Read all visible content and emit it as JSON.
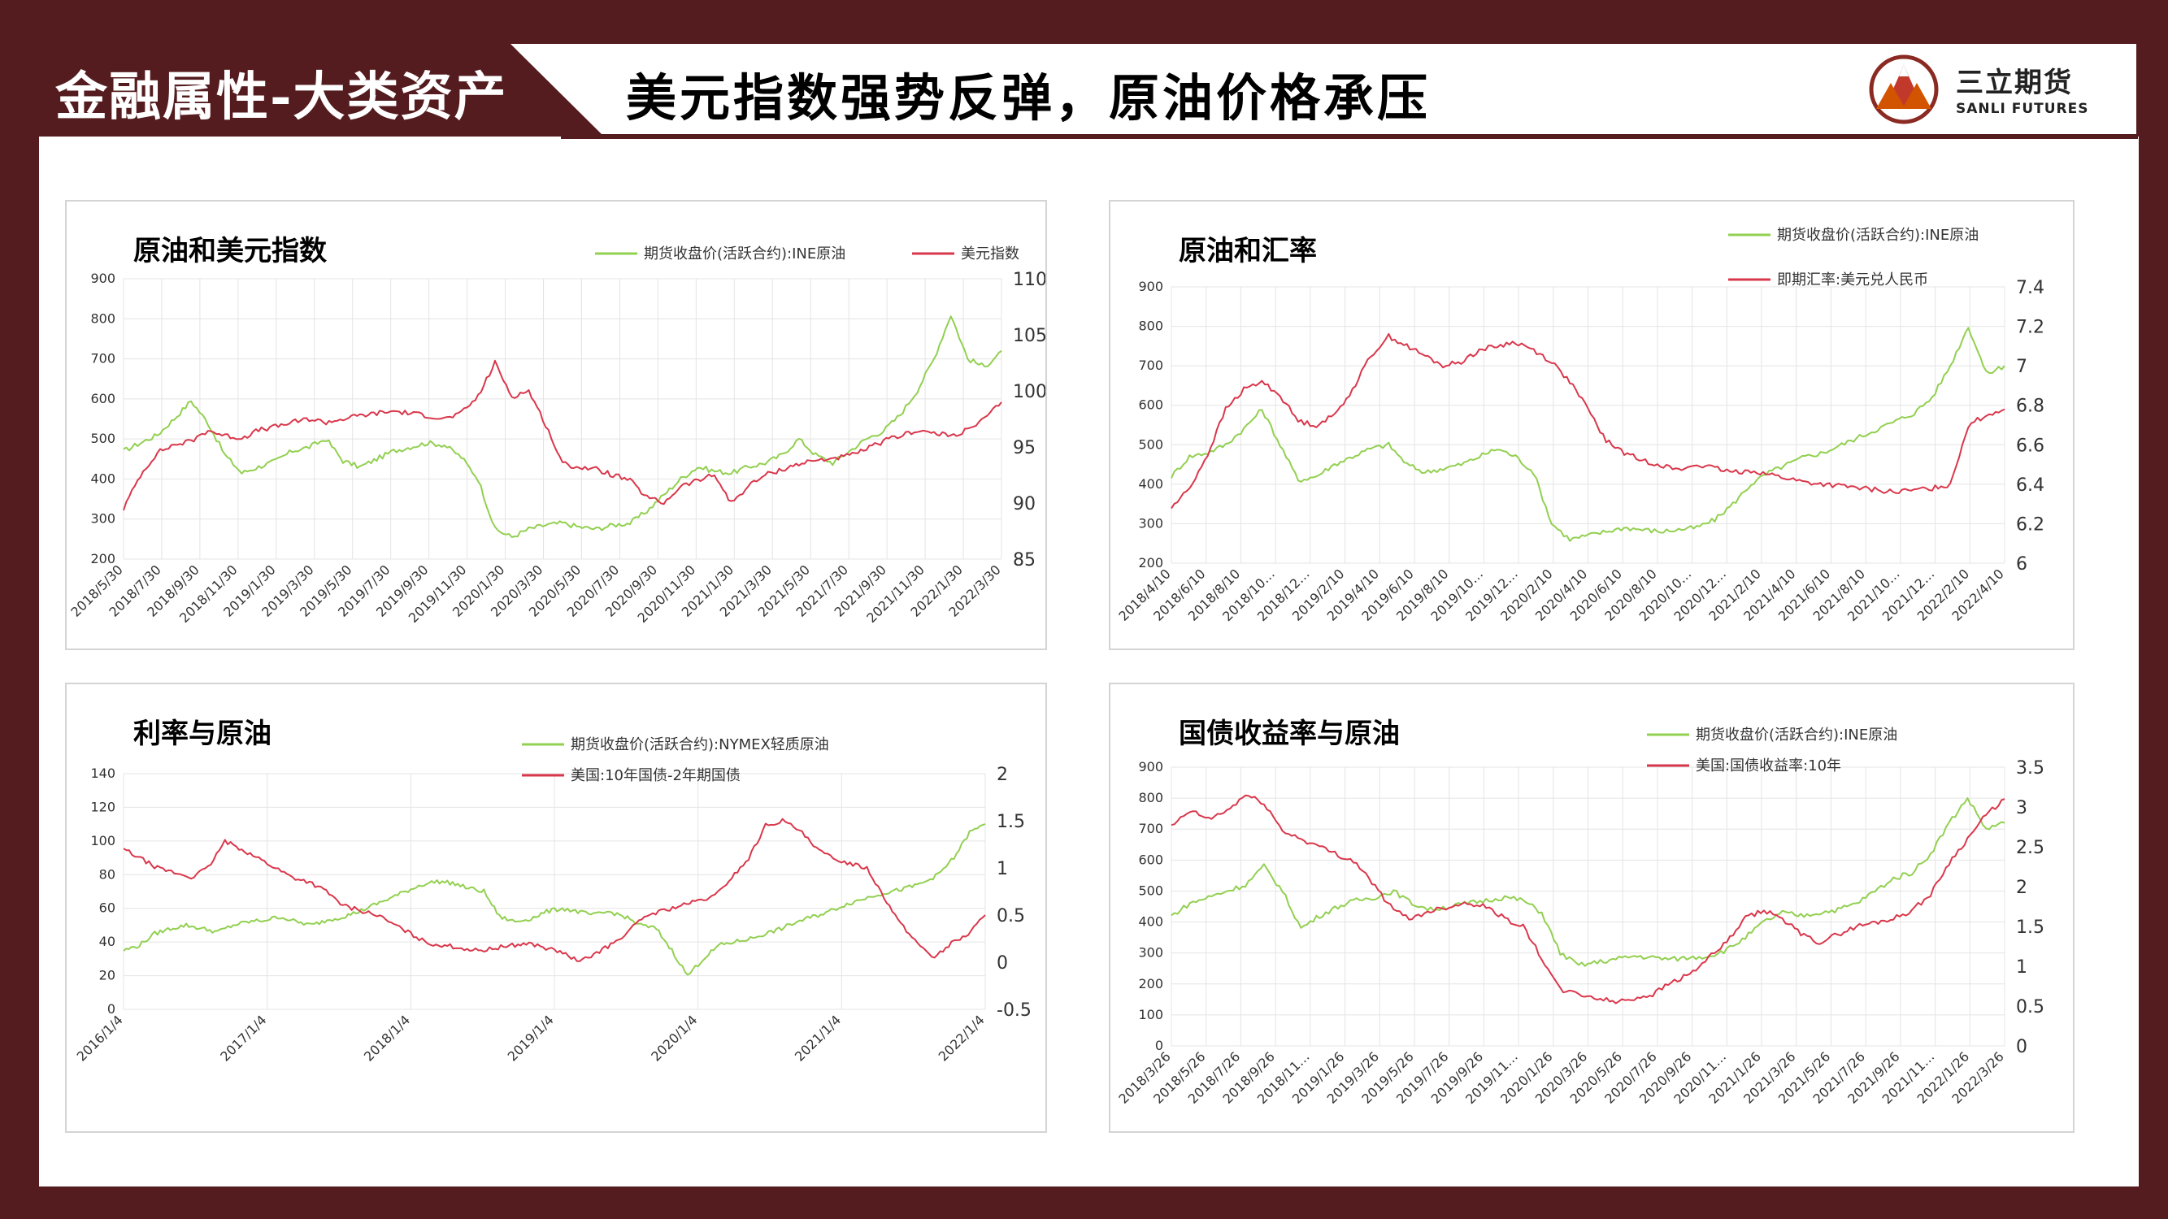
{
  "header": {
    "section_label": "金融属性-大类资产",
    "title": "美元指数强势反弹，原油价格承压",
    "logo_cn": "三立期货",
    "logo_en": "SANLI FUTURES"
  },
  "colors": {
    "green": "#92d050",
    "red": "#d9374b",
    "brand": "#541c1f",
    "grid": "#e4e4e4"
  },
  "chart_data": [
    {
      "type": "line",
      "title": "原油和美元指数",
      "x_tick_labels": [
        "2018/5/30",
        "2018/7/30",
        "2018/9/30",
        "2018/11/30",
        "2019/1/30",
        "2019/3/30",
        "2019/5/30",
        "2019/7/30",
        "2019/9/30",
        "2019/11/30",
        "2020/1/30",
        "2020/3/30",
        "2020/5/30",
        "2020/7/30",
        "2020/9/30",
        "2020/11/30",
        "2021/1/30",
        "2021/3/30",
        "2021/5/30",
        "2021/7/30",
        "2021/9/30",
        "2021/11/30",
        "2022/1/30",
        "2022/3/30"
      ],
      "y_left": {
        "ticks": [
          200,
          300,
          400,
          500,
          600,
          700,
          800,
          900
        ],
        "lim": [
          200,
          900
        ]
      },
      "y_right": {
        "ticks": [
          85,
          90,
          95,
          100,
          105,
          110
        ],
        "lim": [
          85,
          110
        ]
      },
      "series": [
        {
          "name": "期货收盘价(活跃合约):INE原油",
          "axis": "left",
          "color": "green",
          "values": [
            470,
            490,
            510,
            550,
            595,
            540,
            460,
            415,
            430,
            445,
            470,
            480,
            500,
            445,
            430,
            450,
            470,
            480,
            490,
            485,
            455,
            400,
            275,
            255,
            275,
            285,
            290,
            280,
            275,
            285,
            290,
            320,
            360,
            400,
            430,
            420,
            415,
            430,
            440,
            460,
            500,
            460,
            440,
            470,
            500,
            520,
            560,
            620,
            700,
            810,
            700,
            680,
            720
          ]
        },
        {
          "name": "美元指数",
          "axis": "right",
          "color": "red",
          "values": [
            89.5,
            92.5,
            94.5,
            95.2,
            95.5,
            96.5,
            96.0,
            95.8,
            96.5,
            96.8,
            97.2,
            97.5,
            97.2,
            97.5,
            97.8,
            98.0,
            98.2,
            98.0,
            97.8,
            97.5,
            98.0,
            99.5,
            102.5,
            99.5,
            100.0,
            97.0,
            93.5,
            93.2,
            93.0,
            92.5,
            92.0,
            90.5,
            90.0,
            91.5,
            92.0,
            92.5,
            90.0,
            91.5,
            92.5,
            93.0,
            93.5,
            93.8,
            94.0,
            94.2,
            94.8,
            95.5,
            96.0,
            96.5,
            96.2,
            96.0,
            96.5,
            97.5,
            99.0
          ]
        }
      ]
    },
    {
      "type": "line",
      "title": "原油和汇率",
      "x_tick_labels": [
        "2018/4/10",
        "2018/6/10",
        "2018/8/10",
        "2018/10…",
        "2018/12…",
        "2019/2/10",
        "2019/4/10",
        "2019/6/10",
        "2019/8/10",
        "2019/10…",
        "2019/12…",
        "2020/2/10",
        "2020/4/10",
        "2020/6/10",
        "2020/8/10",
        "2020/10…",
        "2020/12…",
        "2021/2/10",
        "2021/4/10",
        "2021/6/10",
        "2021/8/10",
        "2021/10…",
        "2021/12…",
        "2022/2/10",
        "2022/4/10"
      ],
      "y_left": {
        "ticks": [
          200,
          300,
          400,
          500,
          600,
          700,
          800,
          900
        ],
        "lim": [
          200,
          900
        ]
      },
      "y_right": {
        "ticks": [
          6,
          6.2,
          6.4,
          6.6,
          6.8,
          7,
          7.2,
          7.4
        ],
        "lim": [
          6,
          7.4
        ]
      },
      "series": [
        {
          "name": "期货收盘价(活跃合约):INE原油",
          "axis": "left",
          "color": "green",
          "values": [
            420,
            470,
            480,
            500,
            540,
            590,
            500,
            410,
            420,
            450,
            470,
            490,
            500,
            450,
            430,
            440,
            450,
            470,
            490,
            470,
            430,
            300,
            260,
            270,
            280,
            290,
            285,
            280,
            285,
            290,
            310,
            350,
            400,
            430,
            450,
            470,
            480,
            500,
            520,
            540,
            560,
            580,
            620,
            700,
            800,
            680,
            700
          ]
        },
        {
          "name": "即期汇率:美元兑人民币",
          "axis": "right",
          "color": "red",
          "values": [
            6.28,
            6.38,
            6.55,
            6.78,
            6.88,
            6.92,
            6.85,
            6.72,
            6.7,
            6.75,
            6.88,
            7.05,
            7.15,
            7.1,
            7.05,
            7.0,
            7.02,
            7.08,
            7.1,
            7.12,
            7.08,
            7.02,
            6.92,
            6.78,
            6.62,
            6.56,
            6.52,
            6.5,
            6.47,
            6.5,
            6.48,
            6.46,
            6.47,
            6.45,
            6.43,
            6.41,
            6.4,
            6.39,
            6.38,
            6.37,
            6.36,
            6.37,
            6.38,
            6.4,
            6.7,
            6.75,
            6.78
          ]
        }
      ]
    },
    {
      "type": "line",
      "title": "利率与原油",
      "x_tick_labels": [
        "2016/1/4",
        "2017/1/4",
        "2018/1/4",
        "2019/1/4",
        "2020/1/4",
        "2021/1/4",
        "2022/1/4"
      ],
      "y_left": {
        "ticks": [
          0,
          20,
          40,
          60,
          80,
          100,
          120,
          140
        ],
        "lim": [
          0,
          140
        ]
      },
      "y_right": {
        "ticks": [
          -0.5,
          0,
          0.5,
          1,
          1.5,
          2
        ],
        "lim": [
          -0.5,
          2
        ]
      },
      "series": [
        {
          "name": "期货收盘价(活跃合约):NYMEX轻质原油",
          "axis": "left",
          "color": "green",
          "values": [
            35,
            38,
            45,
            48,
            50,
            48,
            46,
            50,
            52,
            53,
            55,
            52,
            50,
            53,
            55,
            58,
            62,
            66,
            70,
            74,
            76,
            75,
            72,
            70,
            55,
            52,
            54,
            58,
            60,
            58,
            56,
            58,
            55,
            50,
            48,
            35,
            20,
            30,
            38,
            40,
            42,
            45,
            48,
            52,
            55,
            58,
            62,
            65,
            68,
            70,
            72,
            75,
            80,
            90,
            105,
            110
          ]
        },
        {
          "name": "美国:10年国债-2年期国债",
          "axis": "right",
          "color": "red",
          "values": [
            1.2,
            1.1,
            1.0,
            0.95,
            0.9,
            1.0,
            1.28,
            1.2,
            1.1,
            1.0,
            0.9,
            0.85,
            0.75,
            0.6,
            0.55,
            0.5,
            0.4,
            0.3,
            0.2,
            0.18,
            0.15,
            0.12,
            0.15,
            0.18,
            0.2,
            0.15,
            0.1,
            0.0,
            0.1,
            0.2,
            0.35,
            0.5,
            0.55,
            0.6,
            0.65,
            0.7,
            0.9,
            1.1,
            1.45,
            1.5,
            1.4,
            1.2,
            1.1,
            1.05,
            1.0,
            0.7,
            0.4,
            0.2,
            0.05,
            0.2,
            0.3,
            0.5
          ]
        }
      ]
    },
    {
      "type": "line",
      "title": "国债收益率与原油",
      "x_tick_labels": [
        "2018/3/26",
        "2018/5/26",
        "2018/7/26",
        "2018/9/26",
        "2018/11…",
        "2019/1/26",
        "2019/3/26",
        "2019/5/26",
        "2019/7/26",
        "2019/9/26",
        "2019/11…",
        "2020/1/26",
        "2020/3/26",
        "2020/5/26",
        "2020/7/26",
        "2020/9/26",
        "2020/11…",
        "2021/1/26",
        "2021/3/26",
        "2021/5/26",
        "2021/7/26",
        "2021/9/26",
        "2021/11…",
        "2022/1/26",
        "2022/3/26"
      ],
      "y_left": {
        "ticks": [
          0,
          100,
          200,
          300,
          400,
          500,
          600,
          700,
          800,
          900
        ],
        "lim": [
          0,
          900
        ]
      },
      "y_right": {
        "ticks": [
          0,
          0.5,
          1,
          1.5,
          2,
          2.5,
          3,
          3.5
        ],
        "lim": [
          0,
          3.5
        ]
      },
      "series": [
        {
          "name": "期货收盘价(活跃合约):INE原油",
          "axis": "left",
          "color": "green",
          "values": [
            420,
            460,
            480,
            500,
            520,
            580,
            500,
            380,
            420,
            450,
            470,
            480,
            500,
            460,
            440,
            450,
            460,
            470,
            480,
            470,
            430,
            300,
            260,
            270,
            280,
            290,
            285,
            280,
            285,
            290,
            310,
            350,
            400,
            430,
            420,
            430,
            440,
            460,
            500,
            540,
            560,
            620,
            720,
            800,
            700,
            720
          ]
        },
        {
          "name": "美国:国债收益率:10年",
          "axis": "right",
          "color": "red",
          "values": [
            2.75,
            2.95,
            2.85,
            2.95,
            3.15,
            3.05,
            2.7,
            2.6,
            2.5,
            2.4,
            2.3,
            2.0,
            1.7,
            1.6,
            1.7,
            1.75,
            1.8,
            1.75,
            1.6,
            1.5,
            1.1,
            0.7,
            0.65,
            0.6,
            0.55,
            0.6,
            0.65,
            0.8,
            0.9,
            1.1,
            1.3,
            1.6,
            1.7,
            1.6,
            1.4,
            1.3,
            1.4,
            1.5,
            1.55,
            1.6,
            1.7,
            1.9,
            2.3,
            2.6,
            2.9,
            3.1
          ]
        }
      ]
    }
  ]
}
